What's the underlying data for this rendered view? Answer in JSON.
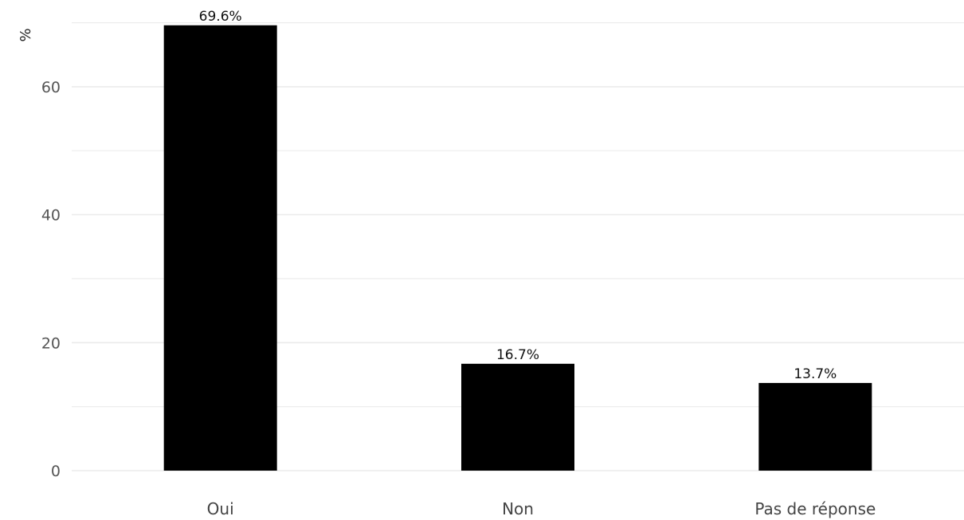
{
  "chart_data": {
    "type": "bar",
    "categories": [
      "Oui",
      "Non",
      "Pas de réponse"
    ],
    "values": [
      69.6,
      16.7,
      13.7
    ],
    "data_labels": [
      "69.6%",
      "16.7%",
      "13.7%"
    ],
    "title": "",
    "xlabel": "",
    "ylabel": "%",
    "ylim": [
      0,
      70
    ],
    "yticks": [
      0,
      20,
      40,
      60
    ],
    "ytick_labels": [
      "0",
      "20",
      "40",
      "60"
    ],
    "grid": true,
    "legend": "none",
    "bar_color": "#000000",
    "grid_color": "#ebebeb"
  }
}
